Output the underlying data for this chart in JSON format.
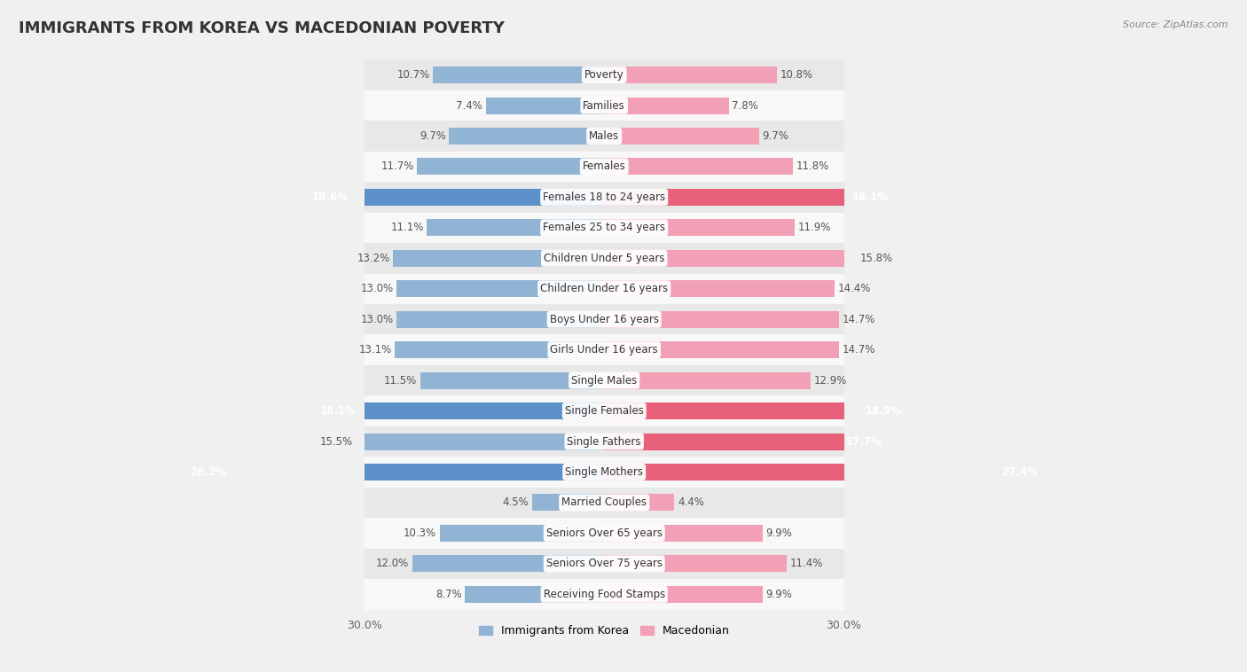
{
  "title": "IMMIGRANTS FROM KOREA VS MACEDONIAN POVERTY",
  "source": "Source: ZipAtlas.com",
  "categories": [
    "Poverty",
    "Families",
    "Males",
    "Females",
    "Females 18 to 24 years",
    "Females 25 to 34 years",
    "Children Under 5 years",
    "Children Under 16 years",
    "Boys Under 16 years",
    "Girls Under 16 years",
    "Single Males",
    "Single Females",
    "Single Fathers",
    "Single Mothers",
    "Married Couples",
    "Seniors Over 65 years",
    "Seniors Over 75 years",
    "Receiving Food Stamps"
  ],
  "korea_values": [
    10.7,
    7.4,
    9.7,
    11.7,
    18.6,
    11.1,
    13.2,
    13.0,
    13.0,
    13.1,
    11.5,
    18.1,
    15.5,
    26.2,
    4.5,
    10.3,
    12.0,
    8.7
  ],
  "macedonian_values": [
    10.8,
    7.8,
    9.7,
    11.8,
    18.1,
    11.9,
    15.8,
    14.4,
    14.7,
    14.7,
    12.9,
    18.9,
    17.7,
    27.4,
    4.4,
    9.9,
    11.4,
    9.9
  ],
  "korea_color": "#92b4d4",
  "korea_highlight_color": "#5b90c8",
  "macedonian_color": "#f2a0b5",
  "macedonian_highlight_color": "#e8607a",
  "highlight_threshold": 17.0,
  "bar_height": 0.55,
  "x_max": 30.0,
  "background_color": "#f0f0f0",
  "row_color_odd": "#e8e8e8",
  "row_color_even": "#f8f8f8",
  "legend_korea": "Immigrants from Korea",
  "legend_macedonian": "Macedonian",
  "title_fontsize": 13,
  "label_fontsize": 8.5,
  "value_fontsize": 8.5,
  "axis_fontsize": 9
}
